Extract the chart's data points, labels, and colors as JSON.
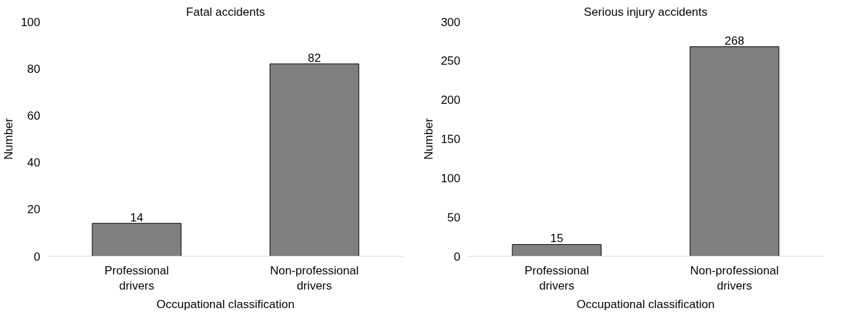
{
  "chart_data": [
    {
      "type": "bar",
      "title": "Fatal accidents",
      "xlabel": "Occupational classification",
      "ylabel": "Number",
      "categories": [
        "Professional drivers",
        "Non-professional drivers"
      ],
      "values": [
        14,
        82
      ],
      "color": "#808080",
      "ylim": [
        0,
        100
      ],
      "yticks": [
        0,
        20,
        40,
        60,
        80,
        100
      ],
      "data_labels": true,
      "grid": false,
      "legend": false
    },
    {
      "type": "bar",
      "title": "Serious injury accidents",
      "xlabel": "Occupational classification",
      "ylabel": "Number",
      "categories": [
        "Professional drivers",
        "Non-professional drivers"
      ],
      "values": [
        15,
        268
      ],
      "color": "#808080",
      "ylim": [
        0,
        300
      ],
      "yticks": [
        0,
        50,
        100,
        150,
        200,
        250,
        300
      ],
      "data_labels": true,
      "grid": false,
      "legend": false
    }
  ]
}
